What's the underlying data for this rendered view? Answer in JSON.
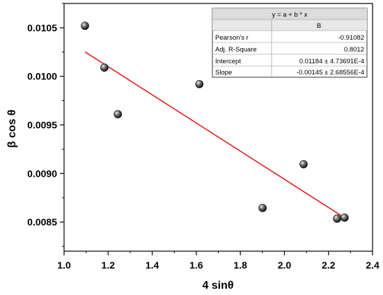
{
  "chart_data": {
    "type": "scatter",
    "title": "",
    "xlabel": "4 sinθ",
    "ylabel": "β cos θ",
    "xlim": [
      1.0,
      2.4
    ],
    "ylim": [
      0.0082,
      0.01075
    ],
    "x_ticks": [
      1.0,
      1.2,
      1.4,
      1.6,
      1.8,
      2.0,
      2.2,
      2.4
    ],
    "x_tick_labels": [
      "1.0",
      "1.2",
      "1.4",
      "1.6",
      "1.8",
      "2.0",
      "2.2",
      "2.4"
    ],
    "y_ticks": [
      0.0085,
      0.009,
      0.0095,
      0.01,
      0.0105
    ],
    "y_tick_labels": [
      "0.0085",
      "0.0090",
      "0.0095",
      "0.0100",
      "0.0105"
    ],
    "grid": false,
    "series": [
      {
        "type": "scatter",
        "x": [
          1.095,
          1.183,
          1.244,
          1.614,
          1.901,
          2.087,
          2.239,
          2.273
        ],
        "y": [
          0.01052,
          0.01009,
          0.00961,
          0.00992,
          0.008645,
          0.009095,
          0.008535,
          0.008545
        ],
        "color": "#000000"
      },
      {
        "type": "line",
        "x": [
          1.095,
          2.273
        ],
        "y": [
          0.010252,
          0.008544
        ],
        "color": "#e02020"
      }
    ],
    "stats_table": {
      "equation": "y = a + b * x",
      "column_header": "B",
      "rows": [
        {
          "label": "Pearson's r",
          "value": "-0.91082"
        },
        {
          "label": "Adj. R-Square",
          "value": "0.8012"
        },
        {
          "label": "Intercept",
          "value": "0.01184 ± 4.73691E-4"
        },
        {
          "label": "Slope",
          "value": "-0.00145 ± 2.68556E-4"
        }
      ]
    }
  }
}
